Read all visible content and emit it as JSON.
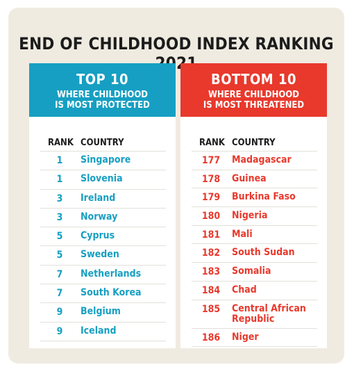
{
  "title": "END OF CHILDHOOD INDEX RANKING 2021",
  "top": {
    "heading": "TOP 10",
    "subtitle_line1": "WHERE CHILDHOOD",
    "subtitle_line2": "IS MOST PROTECTED",
    "rank_header": "RANK",
    "country_header": "COUNTRY",
    "color": "#169fc2",
    "rows": [
      {
        "rank": "1",
        "country": "Singapore"
      },
      {
        "rank": "1",
        "country": "Slovenia"
      },
      {
        "rank": "3",
        "country": "Ireland"
      },
      {
        "rank": "3",
        "country": "Norway"
      },
      {
        "rank": "5",
        "country": "Cyprus"
      },
      {
        "rank": "5",
        "country": "Sweden"
      },
      {
        "rank": "7",
        "country": "Netherlands"
      },
      {
        "rank": "7",
        "country": "South Korea"
      },
      {
        "rank": "9",
        "country": "Belgium"
      },
      {
        "rank": "9",
        "country": "Iceland"
      }
    ]
  },
  "bottom": {
    "heading": "BOTTOM 10",
    "subtitle_line1": "WHERE CHILDHOOD",
    "subtitle_line2": "IS MOST THREATENED",
    "rank_header": "RANK",
    "country_header": "COUNTRY",
    "color": "#e8392c",
    "rows": [
      {
        "rank": "177",
        "country": "Madagascar"
      },
      {
        "rank": "178",
        "country": "Guinea"
      },
      {
        "rank": "179",
        "country": "Burkina Faso"
      },
      {
        "rank": "180",
        "country": "Nigeria"
      },
      {
        "rank": "181",
        "country": "Mali"
      },
      {
        "rank": "182",
        "country": "South Sudan"
      },
      {
        "rank": "183",
        "country": "Somalia"
      },
      {
        "rank": "184",
        "country": "Chad"
      },
      {
        "rank": "185",
        "country": "Central African Republic"
      },
      {
        "rank": "186",
        "country": "Niger"
      }
    ]
  }
}
